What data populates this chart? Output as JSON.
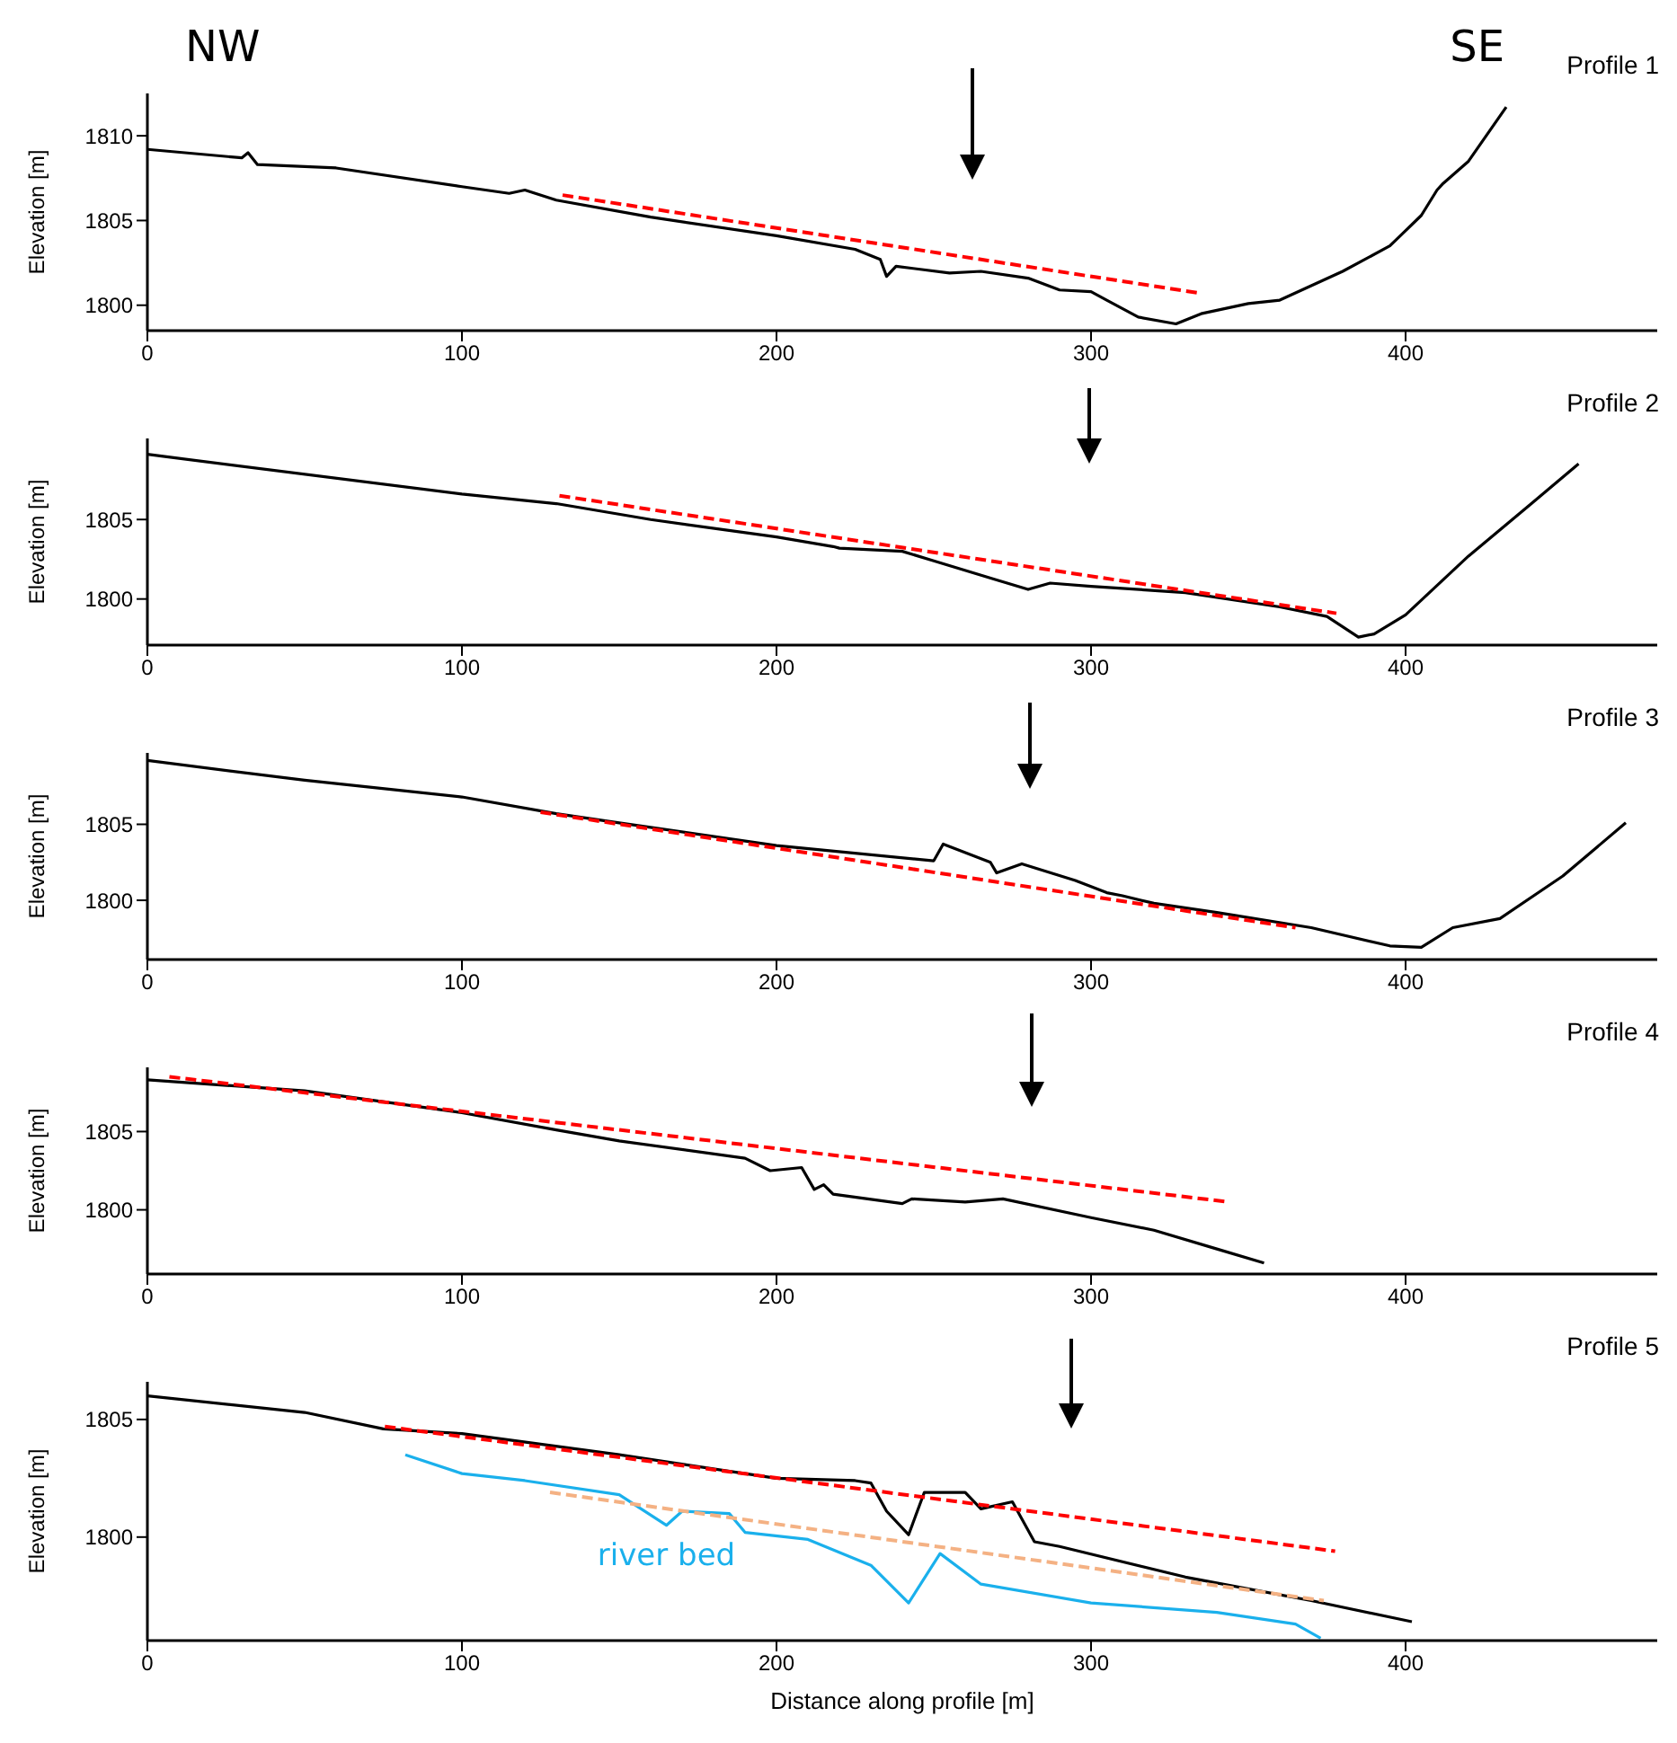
{
  "chart_data": [
    {
      "type": "line",
      "title": "Profile 1",
      "ylabel": "Elevation [m]",
      "annotations": [
        "NW",
        "SE"
      ],
      "xlim": [
        0,
        480
      ],
      "xticks": [
        0,
        100,
        200,
        300,
        400
      ],
      "ylim": [
        1798.5,
        1812.5
      ],
      "yticks": [
        1800,
        1805,
        1810
      ],
      "legend": false,
      "grid": false,
      "marker": "none",
      "series": [
        {
          "color": "#000000",
          "line_style": "solid",
          "x": [
            0,
            30,
            32,
            35,
            60,
            100,
            115,
            120,
            130,
            160,
            200,
            225,
            233,
            235,
            238,
            255,
            265,
            280,
            290,
            300,
            305,
            315,
            327,
            335,
            350,
            360,
            380,
            395,
            405,
            410,
            412,
            420,
            432
          ],
          "values": [
            1809.2,
            1808.7,
            1809.0,
            1808.3,
            1808.1,
            1807.0,
            1806.6,
            1806.8,
            1806.2,
            1805.2,
            1804.1,
            1803.3,
            1802.7,
            1801.7,
            1802.3,
            1801.9,
            1802.0,
            1801.6,
            1800.9,
            1800.8,
            1800.3,
            1799.3,
            1798.9,
            1799.5,
            1800.1,
            1800.3,
            1802.0,
            1803.5,
            1805.3,
            1806.8,
            1807.2,
            1808.5,
            1811.7
          ]
        },
        {
          "type": "line",
          "color": "#ff0000",
          "line_style": "dashed",
          "x": [
            132,
            335
          ],
          "values": [
            1806.5,
            1800.7
          ]
        }
      ]
    },
    {
      "type": "line",
      "title": "Profile 2",
      "ylabel": "Elevation [m]",
      "xlim": [
        0,
        480
      ],
      "xticks": [
        0,
        100,
        200,
        300,
        400
      ],
      "ylim": [
        1797.1,
        1810.1
      ],
      "yticks": [
        1800,
        1805
      ],
      "legend": false,
      "grid": false,
      "marker": "none",
      "series": [
        {
          "color": "#000000",
          "line_style": "solid",
          "x": [
            0,
            100,
            130,
            160,
            200,
            218,
            220,
            240,
            250,
            270,
            280,
            287,
            300,
            330,
            360,
            375,
            385,
            390,
            400,
            420,
            440,
            455
          ],
          "values": [
            1809.1,
            1806.6,
            1806.0,
            1805.0,
            1803.9,
            1803.3,
            1803.2,
            1803.0,
            1802.4,
            1801.2,
            1800.6,
            1801.0,
            1800.8,
            1800.4,
            1799.5,
            1798.9,
            1797.6,
            1797.8,
            1799.0,
            1802.7,
            1806.0,
            1808.5
          ]
        },
        {
          "type": "line",
          "color": "#ff0000",
          "line_style": "dashed",
          "x": [
            131,
            378
          ],
          "values": [
            1806.5,
            1799.1
          ]
        }
      ]
    },
    {
      "type": "line",
      "title": "Profile 3",
      "ylabel": "Elevation [m]",
      "xlim": [
        0,
        480
      ],
      "xticks": [
        0,
        100,
        200,
        300,
        400
      ],
      "ylim": [
        1796.1,
        1809.7
      ],
      "yticks": [
        1800,
        1805
      ],
      "legend": false,
      "grid": false,
      "marker": "none",
      "series": [
        {
          "color": "#000000",
          "line_style": "solid",
          "x": [
            0,
            50,
            100,
            130,
            150,
            200,
            250,
            253,
            268,
            270,
            278,
            295,
            305,
            310,
            320,
            340,
            370,
            395,
            405,
            415,
            430,
            450,
            470
          ],
          "values": [
            1809.2,
            1807.9,
            1806.8,
            1805.7,
            1805.1,
            1803.6,
            1802.6,
            1803.7,
            1802.5,
            1801.8,
            1802.4,
            1801.3,
            1800.5,
            1800.3,
            1799.8,
            1799.2,
            1798.2,
            1797.0,
            1796.9,
            1798.2,
            1798.8,
            1801.6,
            1805.1
          ]
        },
        {
          "type": "line",
          "color": "#ff0000",
          "line_style": "dashed",
          "x": [
            125,
            365
          ],
          "values": [
            1805.8,
            1798.2
          ]
        }
      ]
    },
    {
      "type": "line",
      "title": "Profile 4",
      "ylabel": "Elevation [m]",
      "xlim": [
        0,
        480
      ],
      "xticks": [
        0,
        100,
        200,
        300,
        400
      ],
      "ylim": [
        1795.9,
        1809.1
      ],
      "yticks": [
        1800,
        1805
      ],
      "legend": false,
      "grid": false,
      "marker": "none",
      "series": [
        {
          "color": "#000000",
          "line_style": "solid",
          "x": [
            0,
            50,
            100,
            130,
            150,
            190,
            198,
            208,
            212,
            215,
            218,
            240,
            243,
            260,
            272,
            300,
            320,
            340,
            355
          ],
          "values": [
            1808.3,
            1807.6,
            1806.2,
            1805.1,
            1804.4,
            1803.3,
            1802.5,
            1802.7,
            1801.3,
            1801.6,
            1801.0,
            1800.4,
            1800.7,
            1800.5,
            1800.7,
            1799.5,
            1798.7,
            1797.5,
            1796.6
          ]
        },
        {
          "type": "line",
          "color": "#ff0000",
          "line_style": "dashed",
          "x": [
            7,
            344
          ],
          "values": [
            1808.5,
            1800.5
          ]
        }
      ]
    },
    {
      "type": "line",
      "title": "Profile 5",
      "ylabel": "Elevation [m]",
      "xlabel": "Distance along profile [m]",
      "xlim": [
        0,
        480
      ],
      "xticks": [
        0,
        100,
        200,
        300,
        400
      ],
      "ylim": [
        1795.6,
        1806.6
      ],
      "yticks": [
        1800,
        1805
      ],
      "legend": false,
      "grid": false,
      "marker": "none",
      "series": [
        {
          "color": "#000000",
          "line_style": "solid",
          "x": [
            0,
            50,
            75,
            100,
            150,
            200,
            225,
            230,
            235,
            242,
            247,
            260,
            265,
            275,
            282,
            290,
            330,
            370,
            402
          ],
          "values": [
            1806.0,
            1805.3,
            1804.6,
            1804.4,
            1803.5,
            1802.5,
            1802.4,
            1802.3,
            1801.1,
            1800.1,
            1801.9,
            1801.9,
            1801.2,
            1801.5,
            1799.8,
            1799.6,
            1798.3,
            1797.3,
            1796.4
          ]
        },
        {
          "type": "line",
          "name": "river bed",
          "color": "#1ab0ec",
          "line_style": "solid",
          "x": [
            82,
            100,
            120,
            150,
            165,
            170,
            185,
            190,
            210,
            230,
            242,
            252,
            265,
            300,
            340,
            365,
            373
          ],
          "values": [
            1803.5,
            1802.7,
            1802.4,
            1801.8,
            1800.5,
            1801.1,
            1801.0,
            1800.2,
            1799.9,
            1798.8,
            1797.2,
            1799.3,
            1798.0,
            1797.2,
            1796.8,
            1796.3,
            1795.7
          ]
        },
        {
          "type": "line",
          "color": "#f4b183",
          "line_style": "dashed",
          "x": [
            128,
            374
          ],
          "values": [
            1801.9,
            1797.3
          ]
        },
        {
          "type": "line",
          "color": "#ff0000",
          "line_style": "dashed",
          "x": [
            75.5,
            377.6
          ],
          "values": [
            1804.7,
            1799.4
          ]
        }
      ]
    }
  ]
}
